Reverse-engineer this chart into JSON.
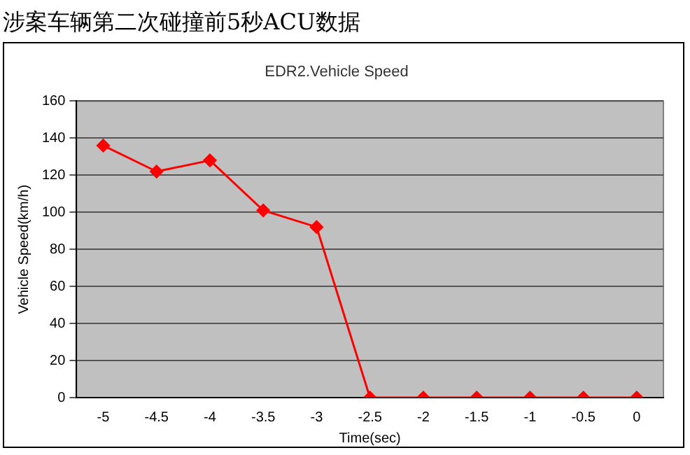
{
  "chart_data": {
    "type": "line",
    "title": "涉案车辆第二次碰撞前5秒ACU数据",
    "subtitle": "EDR2.Vehicle Speed",
    "xlabel": "Time(sec)",
    "ylabel": "Vehicle Speed(km/h)",
    "categories": [
      "-5",
      "-4.5",
      "-4",
      "-3.5",
      "-3",
      "-2.5",
      "-2",
      "-1.5",
      "-1",
      "-0.5",
      "0"
    ],
    "series": [
      {
        "color": "#ff0000",
        "values": [
          136,
          122,
          128,
          101,
          92,
          0,
          0,
          0,
          0,
          0,
          0
        ]
      }
    ],
    "ylim": [
      0,
      160
    ],
    "yticks": [
      0,
      20,
      40,
      60,
      80,
      100,
      120,
      140,
      160
    ],
    "grid": "y",
    "legend": false,
    "marker": "diamond",
    "line_style": "solid"
  }
}
